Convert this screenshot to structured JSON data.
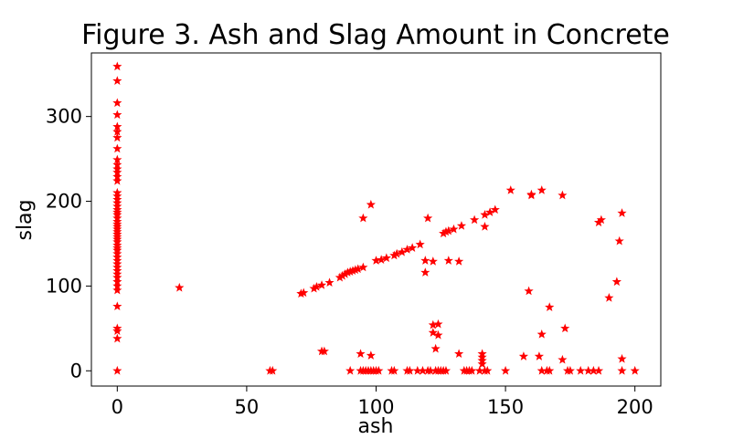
{
  "chart_data": {
    "type": "scatter",
    "title": "Figure 3. Ash and Slag Amount in Concrete",
    "xlabel": "ash",
    "ylabel": "slag",
    "xlim": [
      -10,
      210
    ],
    "ylim": [
      -18,
      375
    ],
    "xticks": [
      0,
      50,
      100,
      150,
      200
    ],
    "yticks": [
      0,
      100,
      200,
      300
    ],
    "marker": "star",
    "color": "#ff0000",
    "grid": false,
    "legend": false,
    "points": [
      [
        0,
        0
      ],
      [
        0,
        38
      ],
      [
        0,
        47
      ],
      [
        0,
        50
      ],
      [
        0,
        76
      ],
      [
        0,
        95
      ],
      [
        0,
        100
      ],
      [
        0,
        105
      ],
      [
        0,
        110
      ],
      [
        0,
        114
      ],
      [
        0,
        118
      ],
      [
        0,
        122
      ],
      [
        0,
        126
      ],
      [
        0,
        130
      ],
      [
        0,
        134
      ],
      [
        0,
        138
      ],
      [
        0,
        142
      ],
      [
        0,
        145
      ],
      [
        0,
        148
      ],
      [
        0,
        152
      ],
      [
        0,
        155
      ],
      [
        0,
        158
      ],
      [
        0,
        161
      ],
      [
        0,
        164
      ],
      [
        0,
        167
      ],
      [
        0,
        170
      ],
      [
        0,
        173
      ],
      [
        0,
        176
      ],
      [
        0,
        180
      ],
      [
        0,
        184
      ],
      [
        0,
        187
      ],
      [
        0,
        190
      ],
      [
        0,
        194
      ],
      [
        0,
        198
      ],
      [
        0,
        202
      ],
      [
        0,
        206
      ],
      [
        0,
        210
      ],
      [
        0,
        224
      ],
      [
        0,
        229
      ],
      [
        0,
        234
      ],
      [
        0,
        238
      ],
      [
        0,
        243
      ],
      [
        0,
        249
      ],
      [
        0,
        262
      ],
      [
        0,
        275
      ],
      [
        0,
        282
      ],
      [
        0,
        288
      ],
      [
        0,
        302
      ],
      [
        0,
        316
      ],
      [
        0,
        342
      ],
      [
        0,
        359
      ],
      [
        24,
        98
      ],
      [
        59,
        0
      ],
      [
        60,
        0
      ],
      [
        71,
        91
      ],
      [
        72,
        92
      ],
      [
        76,
        97
      ],
      [
        77,
        99
      ],
      [
        79,
        101
      ],
      [
        82,
        104
      ],
      [
        86,
        110
      ],
      [
        87,
        112
      ],
      [
        88,
        114
      ],
      [
        89,
        116
      ],
      [
        90,
        117
      ],
      [
        91,
        118
      ],
      [
        92,
        119
      ],
      [
        93,
        120
      ],
      [
        95,
        122
      ],
      [
        100,
        130
      ],
      [
        102,
        131
      ],
      [
        104,
        133
      ],
      [
        107,
        136
      ],
      [
        108,
        138
      ],
      [
        110,
        140
      ],
      [
        112,
        143
      ],
      [
        114,
        145
      ],
      [
        117,
        149
      ],
      [
        119,
        116
      ],
      [
        119,
        130
      ],
      [
        120,
        180
      ],
      [
        122,
        129
      ],
      [
        122,
        54
      ],
      [
        122,
        45
      ],
      [
        123,
        26
      ],
      [
        124,
        55
      ],
      [
        124,
        42
      ],
      [
        126,
        162
      ],
      [
        127,
        164
      ],
      [
        128,
        165
      ],
      [
        128,
        130
      ],
      [
        130,
        167
      ],
      [
        132,
        129
      ],
      [
        133,
        171
      ],
      [
        138,
        178
      ],
      [
        142,
        184
      ],
      [
        142,
        170
      ],
      [
        144,
        187
      ],
      [
        146,
        190
      ],
      [
        152,
        213
      ],
      [
        160,
        208
      ],
      [
        160,
        207
      ],
      [
        164,
        213
      ],
      [
        172,
        207
      ],
      [
        186,
        175
      ],
      [
        187,
        178
      ],
      [
        195,
        186
      ],
      [
        79,
        23
      ],
      [
        80,
        23
      ],
      [
        94,
        20
      ],
      [
        98,
        18
      ],
      [
        95,
        180
      ],
      [
        98,
        196
      ],
      [
        90,
        0
      ],
      [
        94,
        0
      ],
      [
        95,
        0
      ],
      [
        96,
        0
      ],
      [
        97,
        0
      ],
      [
        98,
        0
      ],
      [
        99,
        0
      ],
      [
        100,
        0
      ],
      [
        101,
        0
      ],
      [
        106,
        0
      ],
      [
        107,
        0
      ],
      [
        112,
        0
      ],
      [
        113,
        0
      ],
      [
        116,
        0
      ],
      [
        118,
        0
      ],
      [
        120,
        0
      ],
      [
        121,
        0
      ],
      [
        123,
        0
      ],
      [
        124,
        0
      ],
      [
        125,
        0
      ],
      [
        126,
        0
      ],
      [
        127,
        0
      ],
      [
        134,
        0
      ],
      [
        135,
        0
      ],
      [
        136,
        0
      ],
      [
        137,
        0
      ],
      [
        140,
        0
      ],
      [
        142,
        0
      ],
      [
        143,
        0
      ],
      [
        150,
        0
      ],
      [
        164,
        0
      ],
      [
        166,
        0
      ],
      [
        167,
        0
      ],
      [
        174,
        0
      ],
      [
        175,
        0
      ],
      [
        179,
        0
      ],
      [
        182,
        0
      ],
      [
        184,
        0
      ],
      [
        186,
        0
      ],
      [
        195,
        0
      ],
      [
        200,
        0
      ],
      [
        132,
        20
      ],
      [
        141,
        20
      ],
      [
        141,
        16
      ],
      [
        141,
        12
      ],
      [
        141,
        8
      ],
      [
        157,
        17
      ],
      [
        159,
        94
      ],
      [
        163,
        17
      ],
      [
        164,
        43
      ],
      [
        167,
        75
      ],
      [
        172,
        13
      ],
      [
        173,
        50
      ],
      [
        190,
        86
      ],
      [
        193,
        105
      ],
      [
        194,
        153
      ],
      [
        195,
        14
      ]
    ]
  }
}
